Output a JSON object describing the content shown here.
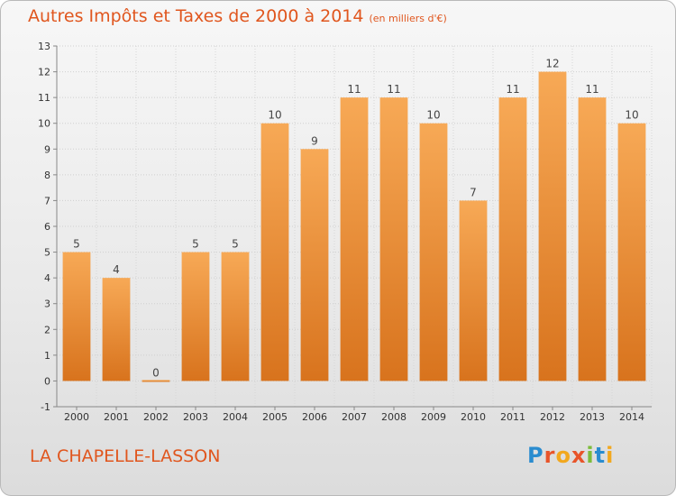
{
  "title": "Autres Impôts et Taxes de 2000 à 2014",
  "unit": "(en milliers d'€)",
  "place": "LA CHAPELLE-LASSON",
  "logo": "Proxiti",
  "colors": {
    "accent": "#e0561e",
    "bar_top": "#f7a956",
    "bar_bottom": "#d8731d",
    "grid": "#cccccc"
  },
  "chart_data": {
    "type": "bar",
    "categories": [
      "2000",
      "2001",
      "2002",
      "2003",
      "2004",
      "2005",
      "2006",
      "2007",
      "2008",
      "2009",
      "2010",
      "2011",
      "2012",
      "2013",
      "2014"
    ],
    "values": [
      5,
      4,
      0,
      5,
      5,
      10,
      9,
      11,
      11,
      10,
      7,
      11,
      12,
      11,
      10
    ],
    "title": "Autres Impôts et Taxes de 2000 à 2014",
    "xlabel": "",
    "ylabel": "",
    "ylim": [
      -1,
      13
    ],
    "yticks": [
      -1,
      0,
      1,
      2,
      3,
      4,
      5,
      6,
      7,
      8,
      9,
      10,
      11,
      12,
      13
    ],
    "grid": true
  }
}
